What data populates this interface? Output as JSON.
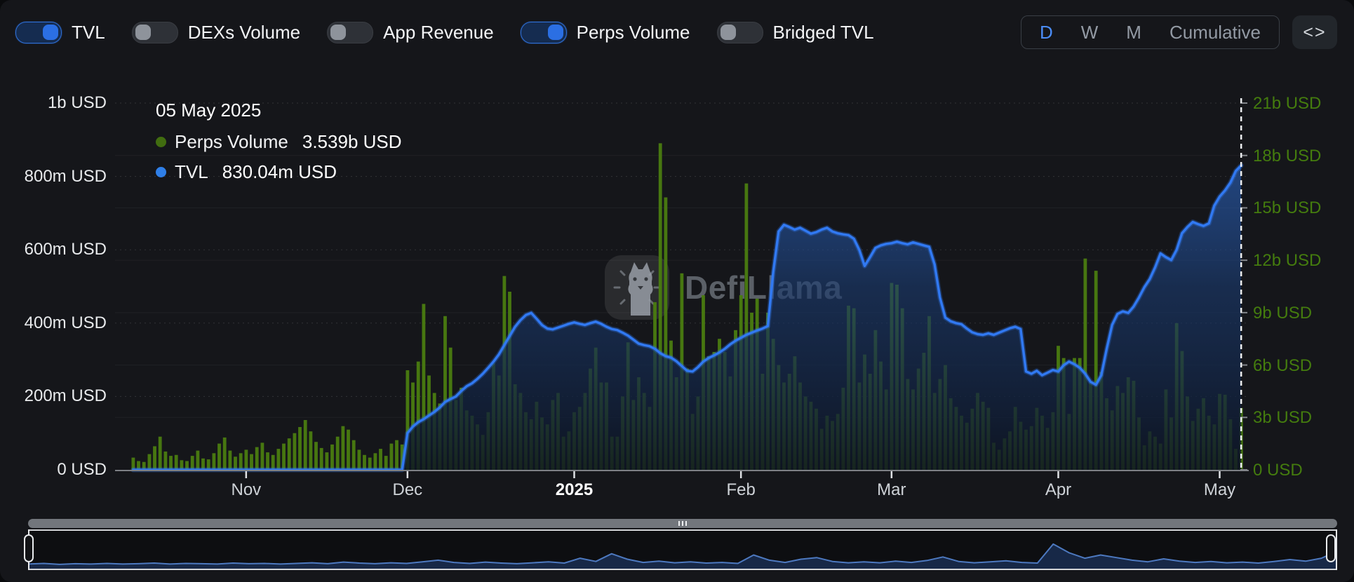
{
  "toolbar": {
    "toggles": [
      {
        "label": "TVL",
        "on": true
      },
      {
        "label": "DEXs Volume",
        "on": false
      },
      {
        "label": "App Revenue",
        "on": false
      },
      {
        "label": "Perps Volume",
        "on": true
      },
      {
        "label": "Bridged TVL",
        "on": false
      }
    ],
    "periods": [
      {
        "label": "D",
        "active": true
      },
      {
        "label": "W",
        "active": false
      },
      {
        "label": "M",
        "active": false
      },
      {
        "label": "Cumulative",
        "active": false
      }
    ],
    "expand_icon": "<>"
  },
  "tooltip": {
    "date": "05 May 2025",
    "rows": [
      {
        "label": "Perps Volume",
        "value": "3.539b USD",
        "color": "#416d10"
      },
      {
        "label": "TVL",
        "value": "830.04m USD",
        "color": "#2f7fe8"
      }
    ]
  },
  "watermark": {
    "text": "DefiLlama"
  },
  "colors": {
    "background": "#15161a",
    "bars_green": "#4a7c10",
    "tvl_line_blue": "#3179f2",
    "right_axis_green": "#447c0e",
    "active_period_blue": "#4b8df8",
    "toggle_on_blue": "#2b6fe3"
  },
  "chart_data": {
    "type": "mixed",
    "x_domain": [
      "2024-10-11",
      "2025-05-05"
    ],
    "x_axis": {
      "ticks": [
        {
          "label": "Nov",
          "day": 21,
          "bold": false
        },
        {
          "label": "Dec",
          "day": 51,
          "bold": false
        },
        {
          "label": "2025",
          "day": 82,
          "bold": true
        },
        {
          "label": "Feb",
          "day": 113,
          "bold": false
        },
        {
          "label": "Mar",
          "day": 141,
          "bold": false
        },
        {
          "label": "Apr",
          "day": 172,
          "bold": false
        },
        {
          "label": "May",
          "day": 202,
          "bold": false
        }
      ]
    },
    "left_axis": {
      "unit": "m USD",
      "max": 1000,
      "labels": [
        "1b USD",
        "800m USD",
        "600m USD",
        "400m USD",
        "200m USD",
        "0 USD"
      ]
    },
    "right_axis": {
      "unit": "b USD",
      "max": 21,
      "labels": [
        "21b USD",
        "18b USD",
        "15b USD",
        "12b USD",
        "9b USD",
        "6b USD",
        "3b USD",
        "0 USD"
      ]
    },
    "cursor_index": 206,
    "legend_position": "tooltip",
    "grid": "faint horizontal",
    "series": [
      {
        "name": "Perps Volume",
        "type": "bar",
        "axis": "right",
        "unit": "b USD",
        "color": "#4a7c10",
        "values": [
          0.7,
          0.5,
          0.45,
          0.9,
          1.35,
          1.9,
          1.05,
          0.8,
          0.85,
          0.55,
          0.5,
          0.8,
          1.1,
          0.65,
          0.6,
          0.95,
          1.5,
          1.85,
          1.1,
          0.75,
          0.95,
          1.15,
          0.9,
          1.3,
          1.55,
          1.0,
          0.85,
          1.2,
          1.5,
          1.8,
          2.1,
          2.45,
          2.85,
          2.2,
          1.6,
          1.25,
          1.0,
          1.45,
          1.9,
          2.5,
          2.3,
          1.7,
          1.15,
          0.85,
          0.7,
          0.95,
          1.2,
          0.8,
          1.5,
          1.7,
          1.45,
          5.7,
          5.0,
          6.2,
          9.5,
          5.4,
          4.4,
          3.8,
          8.8,
          7.0,
          4.0,
          4.7,
          3.4,
          3.1,
          2.6,
          2.0,
          3.3,
          6.1,
          5.4,
          11.1,
          10.2,
          4.9,
          4.4,
          3.3,
          2.9,
          3.9,
          3.0,
          2.6,
          4.0,
          4.4,
          1.9,
          2.2,
          3.3,
          3.6,
          4.4,
          5.8,
          7.0,
          5.0,
          5.0,
          1.9,
          1.9,
          4.2,
          7.3,
          4.0,
          5.3,
          4.4,
          3.6,
          9.6,
          18.7,
          15.6,
          7.4,
          5.3,
          11.25,
          5.8,
          3.2,
          4.2,
          10.0,
          6.5,
          6.75,
          7.5,
          6.75,
          5.35,
          8.0,
          10.0,
          16.4,
          9.0,
          9.8,
          5.5,
          9.0,
          7.5,
          6.0,
          5.0,
          5.5,
          6.5,
          5.0,
          4.2,
          3.9,
          3.5,
          2.35,
          3.1,
          2.8,
          3.2,
          4.7,
          9.4,
          9.25,
          5.0,
          6.6,
          5.5,
          8.0,
          6.2,
          4.6,
          10.7,
          10.6,
          9.25,
          5.2,
          4.6,
          5.8,
          6.7,
          8.8,
          4.4,
          5.2,
          6.0,
          4.1,
          3.6,
          3.1,
          2.7,
          3.5,
          4.4,
          3.9,
          3.55,
          1.55,
          1.15,
          1.8,
          2.2,
          3.6,
          2.75,
          2.3,
          2.5,
          3.55,
          3.1,
          2.4,
          3.3,
          7.1,
          6.4,
          3.2,
          6.4,
          6.4,
          12.1,
          5.0,
          11.4,
          5.6,
          4.1,
          3.4,
          4.8,
          4.4,
          5.3,
          5.1,
          3.0,
          1.4,
          2.2,
          1.9,
          1.5,
          4.6,
          3.0,
          8.4,
          6.8,
          4.2,
          2.8,
          3.5,
          4.1,
          3.1,
          2.6,
          4.35,
          4.3,
          2.9,
          1.2,
          3.539
        ]
      },
      {
        "name": "TVL",
        "type": "area-line",
        "axis": "left",
        "unit": "m USD",
        "color": "#3179f2",
        "values": [
          0,
          0,
          0,
          0,
          0,
          0,
          0,
          0,
          0,
          0,
          0,
          0,
          0,
          0,
          0,
          0,
          0,
          0,
          0,
          0,
          0,
          0,
          0,
          0,
          0,
          0,
          0,
          0,
          0,
          0,
          0,
          0,
          0,
          0,
          0,
          0,
          0,
          0,
          0,
          0,
          0,
          0,
          0,
          0,
          0,
          0,
          0,
          0,
          0,
          0,
          0,
          100,
          118,
          130,
          138,
          148,
          158,
          170,
          185,
          193,
          200,
          215,
          228,
          236,
          248,
          262,
          278,
          295,
          315,
          340,
          365,
          390,
          408,
          422,
          428,
          412,
          395,
          385,
          383,
          388,
          393,
          398,
          402,
          398,
          395,
          400,
          404,
          398,
          390,
          384,
          381,
          374,
          366,
          355,
          344,
          340,
          337,
          330,
          318,
          310,
          306,
          296,
          283,
          270,
          268,
          280,
          295,
          305,
          312,
          320,
          330,
          342,
          352,
          360,
          368,
          374,
          380,
          385,
          392,
          540,
          650,
          668,
          662,
          655,
          660,
          652,
          644,
          648,
          655,
          660,
          650,
          645,
          642,
          640,
          630,
          600,
          556,
          580,
          605,
          612,
          616,
          618,
          622,
          618,
          615,
          620,
          616,
          612,
          608,
          560,
          470,
          415,
          405,
          400,
          397,
          385,
          375,
          370,
          368,
          372,
          368,
          374,
          380,
          386,
          390,
          384,
          268,
          262,
          270,
          258,
          265,
          272,
          268,
          285,
          295,
          288,
          278,
          262,
          240,
          232,
          258,
          330,
          395,
          425,
          432,
          428,
          445,
          470,
          498,
          520,
          552,
          590,
          580,
          572,
          600,
          645,
          662,
          676,
          670,
          665,
          672,
          720,
          745,
          762,
          783,
          815,
          830.04
        ]
      }
    ]
  },
  "brush": {
    "profile": [
      0.1,
      0.12,
      0.09,
      0.11,
      0.1,
      0.12,
      0.1,
      0.11,
      0.13,
      0.1,
      0.12,
      0.11,
      0.1,
      0.13,
      0.11,
      0.12,
      0.1,
      0.12,
      0.14,
      0.11,
      0.16,
      0.13,
      0.11,
      0.14,
      0.12,
      0.17,
      0.22,
      0.15,
      0.12,
      0.16,
      0.13,
      0.11,
      0.14,
      0.17,
      0.13,
      0.28,
      0.18,
      0.42,
      0.25,
      0.15,
      0.19,
      0.14,
      0.17,
      0.13,
      0.15,
      0.12,
      0.38,
      0.22,
      0.15,
      0.25,
      0.3,
      0.18,
      0.14,
      0.17,
      0.14,
      0.19,
      0.15,
      0.21,
      0.32,
      0.18,
      0.14,
      0.17,
      0.2,
      0.15,
      0.13,
      0.72,
      0.45,
      0.28,
      0.38,
      0.3,
      0.22,
      0.17,
      0.26,
      0.19,
      0.15,
      0.18,
      0.14,
      0.16,
      0.13,
      0.18,
      0.24,
      0.19,
      0.28,
      0.5
    ]
  }
}
